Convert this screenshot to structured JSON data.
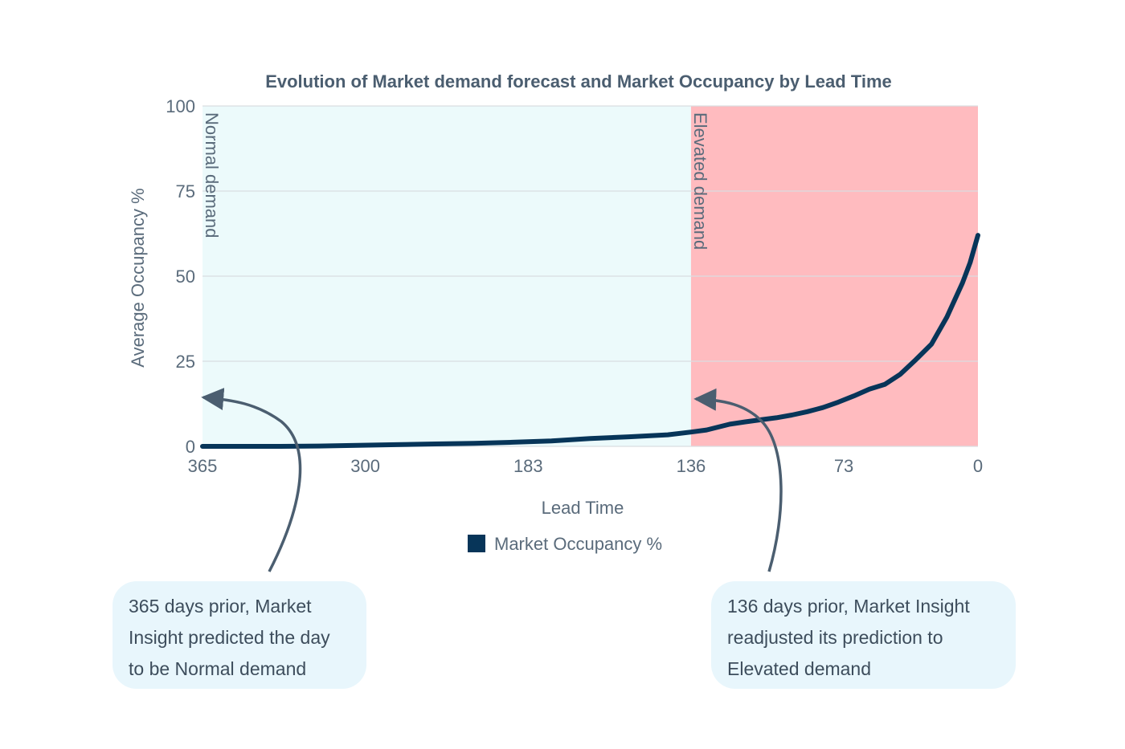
{
  "chart_data": {
    "type": "line",
    "title": "Evolution of Market demand forecast and Market Occupancy by Lead Time",
    "xlabel": "Lead Time",
    "ylabel": "Average Occupancy %",
    "xticks": [
      "365",
      "300",
      "183",
      "136",
      "73",
      "0"
    ],
    "yticks": [
      0,
      25,
      50,
      75,
      100
    ],
    "ylim": [
      0,
      100
    ],
    "grid": true,
    "legend_position": "bottom-center",
    "series": [
      {
        "name": "Market Occupancy %",
        "color": "#073559",
        "x": [
          0,
          0.05,
          0.1,
          0.15,
          0.2,
          0.25,
          0.3,
          0.35,
          0.4,
          0.45,
          0.5,
          0.55,
          0.6,
          0.63,
          0.65,
          0.68,
          0.7,
          0.72,
          0.74,
          0.76,
          0.78,
          0.8,
          0.82,
          0.84,
          0.86,
          0.88,
          0.9,
          0.92,
          0.94,
          0.96,
          0.97,
          0.98,
          0.99,
          1.0
        ],
        "values": [
          0,
          0,
          0,
          0.1,
          0.3,
          0.5,
          0.7,
          0.9,
          1.2,
          1.6,
          2.3,
          2.8,
          3.4,
          4.2,
          4.8,
          6.5,
          7.2,
          7.8,
          8.4,
          9.2,
          10.2,
          11.4,
          13.0,
          14.8,
          16.8,
          18.2,
          21.2,
          25.5,
          30.0,
          38.0,
          43.0,
          48.0,
          54.0,
          62.0
        ]
      }
    ],
    "regions": [
      {
        "label": "Normal demand",
        "from": 0,
        "to": 0.63,
        "color": "#ecfafb"
      },
      {
        "label": "Elevated demand",
        "from": 0.63,
        "to": 1.0,
        "color": "#ffbbbf"
      }
    ],
    "annotations": [
      {
        "text": "365 days prior, Market Insight predicted the day to be Normal demand",
        "lines": [
          "365 days prior, Market",
          "Insight predicted the day",
          "to be Normal demand"
        ],
        "points_to": 0
      },
      {
        "text": "136 days prior, Market Insight readjusted its prediction to Elevated demand",
        "lines": [
          "136 days prior, Market Insight",
          "readjusted its prediction to",
          "Elevated demand"
        ],
        "points_to": 0.63
      }
    ]
  }
}
